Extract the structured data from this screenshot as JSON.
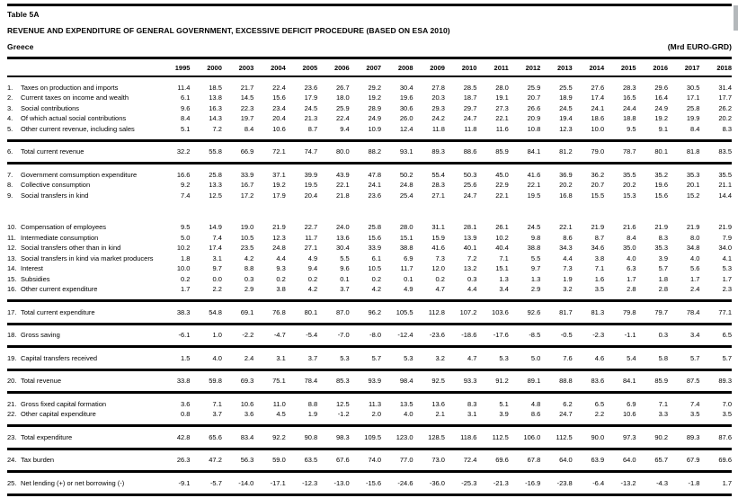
{
  "header": {
    "table_label": "Table 5A",
    "title": "REVENUE AND EXPENDITURE OF GENERAL GOVERNMENT, EXCESSIVE DEFICIT PROCEDURE (BASED ON ESA 2010)",
    "country": "Greece",
    "unit": "(Mrd EURO-GRD)"
  },
  "colors": {
    "text": "#000000",
    "rules": "#000000",
    "background": "#ffffff",
    "scrollbar": "#b4b8bb"
  },
  "table": {
    "years": [
      "1995",
      "2000",
      "2003",
      "2004",
      "2005",
      "2006",
      "2007",
      "2008",
      "2009",
      "2010",
      "2011",
      "2012",
      "2013",
      "2014",
      "2015",
      "2016",
      "2017",
      "2018"
    ],
    "rows": [
      {
        "num": "1.",
        "label": "Taxes on production and imports",
        "pad": "t",
        "after": "",
        "values": [
          "11.4",
          "18.5",
          "21.7",
          "22.4",
          "23.6",
          "26.7",
          "29.2",
          "30.4",
          "27.8",
          "28.5",
          "28.0",
          "25.9",
          "25.5",
          "27.6",
          "28.3",
          "29.6",
          "30.5",
          "31.4"
        ]
      },
      {
        "num": "2.",
        "label": "Current taxes on income and wealth",
        "pad": "",
        "after": "",
        "values": [
          "6.1",
          "13.8",
          "14.5",
          "15.6",
          "17.9",
          "18.0",
          "19.2",
          "19.6",
          "20.3",
          "18.7",
          "19.1",
          "20.7",
          "18.9",
          "17.4",
          "16.5",
          "16.4",
          "17.1",
          "17.7"
        ]
      },
      {
        "num": "3.",
        "label": "Social contributions",
        "pad": "",
        "after": "",
        "values": [
          "9.6",
          "16.3",
          "22.3",
          "23.4",
          "24.5",
          "25.9",
          "28.9",
          "30.6",
          "29.3",
          "29.7",
          "27.3",
          "26.6",
          "24.5",
          "24.1",
          "24.4",
          "24.9",
          "25.8",
          "26.2"
        ]
      },
      {
        "num": "4.",
        "label": "Of which actual social contributions",
        "pad": "",
        "after": "",
        "values": [
          "8.4",
          "14.3",
          "19.7",
          "20.4",
          "21.3",
          "22.4",
          "24.9",
          "26.0",
          "24.2",
          "24.7",
          "22.1",
          "20.9",
          "19.4",
          "18.6",
          "18.8",
          "19.2",
          "19.9",
          "20.2"
        ]
      },
      {
        "num": "5.",
        "label": "Other current revenue, including sales",
        "pad": "b",
        "after": "rule",
        "values": [
          "5.1",
          "7.2",
          "8.4",
          "10.6",
          "8.7",
          "9.4",
          "10.9",
          "12.4",
          "11.8",
          "11.8",
          "11.6",
          "10.8",
          "12.3",
          "10.0",
          "9.5",
          "9.1",
          "8.4",
          "8.3"
        ]
      },
      {
        "num": "6.",
        "label": "Total current revenue",
        "pad": "tb",
        "after": "rule",
        "values": [
          "32.2",
          "55.8",
          "66.9",
          "72.1",
          "74.7",
          "80.0",
          "88.2",
          "93.1",
          "89.3",
          "88.6",
          "85.9",
          "84.1",
          "81.2",
          "79.0",
          "78.7",
          "80.1",
          "81.8",
          "83.5"
        ]
      },
      {
        "num": "7.",
        "label": "Government comsumption expenditure",
        "pad": "t",
        "after": "",
        "values": [
          "16.6",
          "25.8",
          "33.9",
          "37.1",
          "39.9",
          "43.9",
          "47.8",
          "50.2",
          "55.4",
          "50.3",
          "45.0",
          "41.6",
          "36.9",
          "36.2",
          "35.5",
          "35.2",
          "35.3",
          "35.5"
        ]
      },
      {
        "num": "8.",
        "label": "Collective consumption",
        "pad": "",
        "after": "",
        "values": [
          "9.2",
          "13.3",
          "16.7",
          "19.2",
          "19.5",
          "22.1",
          "24.1",
          "24.8",
          "28.3",
          "25.6",
          "22.9",
          "22.1",
          "20.2",
          "20.7",
          "20.2",
          "19.6",
          "20.1",
          "21.1"
        ]
      },
      {
        "num": "9.",
        "label": "Social transfers in kind",
        "pad": "b",
        "after": "gap",
        "values": [
          "7.4",
          "12.5",
          "17.2",
          "17.9",
          "20.4",
          "21.8",
          "23.6",
          "25.4",
          "27.1",
          "24.7",
          "22.1",
          "19.5",
          "16.8",
          "15.5",
          "15.3",
          "15.6",
          "15.2",
          "14.4"
        ]
      },
      {
        "num": "10.",
        "label": "Compensation of employees",
        "pad": "t",
        "after": "",
        "values": [
          "9.5",
          "14.9",
          "19.0",
          "21.9",
          "22.7",
          "24.0",
          "25.8",
          "28.0",
          "31.1",
          "28.1",
          "26.1",
          "24.5",
          "22.1",
          "21.9",
          "21.6",
          "21.9",
          "21.9",
          "21.9"
        ]
      },
      {
        "num": "11.",
        "label": "Intermediate consumption",
        "pad": "",
        "after": "",
        "values": [
          "5.0",
          "7.4",
          "10.5",
          "12.3",
          "11.7",
          "13.6",
          "15.6",
          "15.1",
          "15.9",
          "13.9",
          "10.2",
          "9.8",
          "8.6",
          "8.7",
          "8.4",
          "8.3",
          "8.0",
          "7.9"
        ]
      },
      {
        "num": "12.",
        "label": "Social transfers other than in kind",
        "pad": "",
        "after": "",
        "values": [
          "10.2",
          "17.4",
          "23.5",
          "24.8",
          "27.1",
          "30.4",
          "33.9",
          "38.8",
          "41.6",
          "40.1",
          "40.4",
          "38.8",
          "34.3",
          "34.6",
          "35.0",
          "35.3",
          "34.8",
          "34.0"
        ]
      },
      {
        "num": "13.",
        "label": "Social transfers in kind via market producers",
        "pad": "",
        "after": "",
        "values": [
          "1.8",
          "3.1",
          "4.2",
          "4.4",
          "4.9",
          "5.5",
          "6.1",
          "6.9",
          "7.3",
          "7.2",
          "7.1",
          "5.5",
          "4.4",
          "3.8",
          "4.0",
          "3.9",
          "4.0",
          "4.1"
        ]
      },
      {
        "num": "14.",
        "label": "Interest",
        "pad": "",
        "after": "",
        "values": [
          "10.0",
          "9.7",
          "8.8",
          "9.3",
          "9.4",
          "9.6",
          "10.5",
          "11.7",
          "12.0",
          "13.2",
          "15.1",
          "9.7",
          "7.3",
          "7.1",
          "6.3",
          "5.7",
          "5.6",
          "5.3"
        ]
      },
      {
        "num": "15.",
        "label": "Subsidies",
        "pad": "",
        "after": "",
        "values": [
          "0.2",
          "0.0",
          "0.3",
          "0.2",
          "0.2",
          "0.1",
          "0.2",
          "0.1",
          "0.2",
          "0.3",
          "1.3",
          "1.3",
          "1.9",
          "1.6",
          "1.7",
          "1.8",
          "1.7",
          "1.7"
        ]
      },
      {
        "num": "16.",
        "label": "Other current expenditure",
        "pad": "b",
        "after": "rule",
        "values": [
          "1.7",
          "2.2",
          "2.9",
          "3.8",
          "4.2",
          "3.7",
          "4.2",
          "4.9",
          "4.7",
          "4.4",
          "3.4",
          "2.9",
          "3.2",
          "3.5",
          "2.8",
          "2.8",
          "2.4",
          "2.3"
        ]
      },
      {
        "num": "17.",
        "label": "Total current expenditure",
        "pad": "tb",
        "after": "rule",
        "values": [
          "38.3",
          "54.8",
          "69.1",
          "76.8",
          "80.1",
          "87.0",
          "96.2",
          "105.5",
          "112.8",
          "107.2",
          "103.6",
          "92.6",
          "81.7",
          "81.3",
          "79.8",
          "79.7",
          "78.4",
          "77.1"
        ]
      },
      {
        "num": "18.",
        "label": "Gross saving",
        "pad": "tb",
        "after": "rule",
        "values": [
          "-6.1",
          "1.0",
          "-2.2",
          "-4.7",
          "-5.4",
          "-7.0",
          "-8.0",
          "-12.4",
          "-23.6",
          "-18.6",
          "-17.6",
          "-8.5",
          "-0.5",
          "-2.3",
          "-1.1",
          "0.3",
          "3.4",
          "6.5"
        ]
      },
      {
        "num": "19.",
        "label": "Capital transfers received",
        "pad": "tb",
        "after": "rule",
        "values": [
          "1.5",
          "4.0",
          "2.4",
          "3.1",
          "3.7",
          "5.3",
          "5.7",
          "5.3",
          "3.2",
          "4.7",
          "5.3",
          "5.0",
          "7.6",
          "4.6",
          "5.4",
          "5.8",
          "5.7",
          "5.7"
        ]
      },
      {
        "num": "20.",
        "label": "Total revenue",
        "pad": "tb",
        "after": "rule",
        "values": [
          "33.8",
          "59.8",
          "69.3",
          "75.1",
          "78.4",
          "85.3",
          "93.9",
          "98.4",
          "92.5",
          "93.3",
          "91.2",
          "89.1",
          "88.8",
          "83.6",
          "84.1",
          "85.9",
          "87.5",
          "89.3"
        ]
      },
      {
        "num": "21.",
        "label": "Gross fixed capital formation",
        "pad": "t",
        "after": "",
        "values": [
          "3.6",
          "7.1",
          "10.6",
          "11.0",
          "8.8",
          "12.5",
          "11.3",
          "13.5",
          "13.6",
          "8.3",
          "5.1",
          "4.8",
          "6.2",
          "6.5",
          "6.9",
          "7.1",
          "7.4",
          "7.0"
        ]
      },
      {
        "num": "22.",
        "label": "Other capital expenditure",
        "pad": "b",
        "after": "rule",
        "values": [
          "0.8",
          "3.7",
          "3.6",
          "4.5",
          "1.9",
          "-1.2",
          "2.0",
          "4.0",
          "2.1",
          "3.1",
          "3.9",
          "8.6",
          "24.7",
          "2.2",
          "10.6",
          "3.3",
          "3.5",
          "3.5"
        ]
      },
      {
        "num": "23.",
        "label": "Total expenditure",
        "pad": "tb",
        "after": "rule",
        "values": [
          "42.8",
          "65.6",
          "83.4",
          "92.2",
          "90.8",
          "98.3",
          "109.5",
          "123.0",
          "128.5",
          "118.6",
          "112.5",
          "106.0",
          "112.5",
          "90.0",
          "97.3",
          "90.2",
          "89.3",
          "87.6"
        ]
      },
      {
        "num": "24.",
        "label": "Tax burden",
        "pad": "tb",
        "after": "rule",
        "values": [
          "26.3",
          "47.2",
          "56.3",
          "59.0",
          "63.5",
          "67.6",
          "74.0",
          "77.0",
          "73.0",
          "72.4",
          "69.6",
          "67.8",
          "64.0",
          "63.9",
          "64.0",
          "65.7",
          "67.9",
          "69.6"
        ]
      },
      {
        "num": "25.",
        "label": "Net lending (+) or net borrowing (-)",
        "pad": "tb",
        "after": "rule",
        "values": [
          "-9.1",
          "-5.7",
          "-14.0",
          "-17.1",
          "-12.3",
          "-13.0",
          "-15.6",
          "-24.6",
          "-36.0",
          "-25.3",
          "-21.3",
          "-16.9",
          "-23.8",
          "-6.4",
          "-13.2",
          "-4.3",
          "-1.8",
          "1.7"
        ]
      }
    ]
  }
}
